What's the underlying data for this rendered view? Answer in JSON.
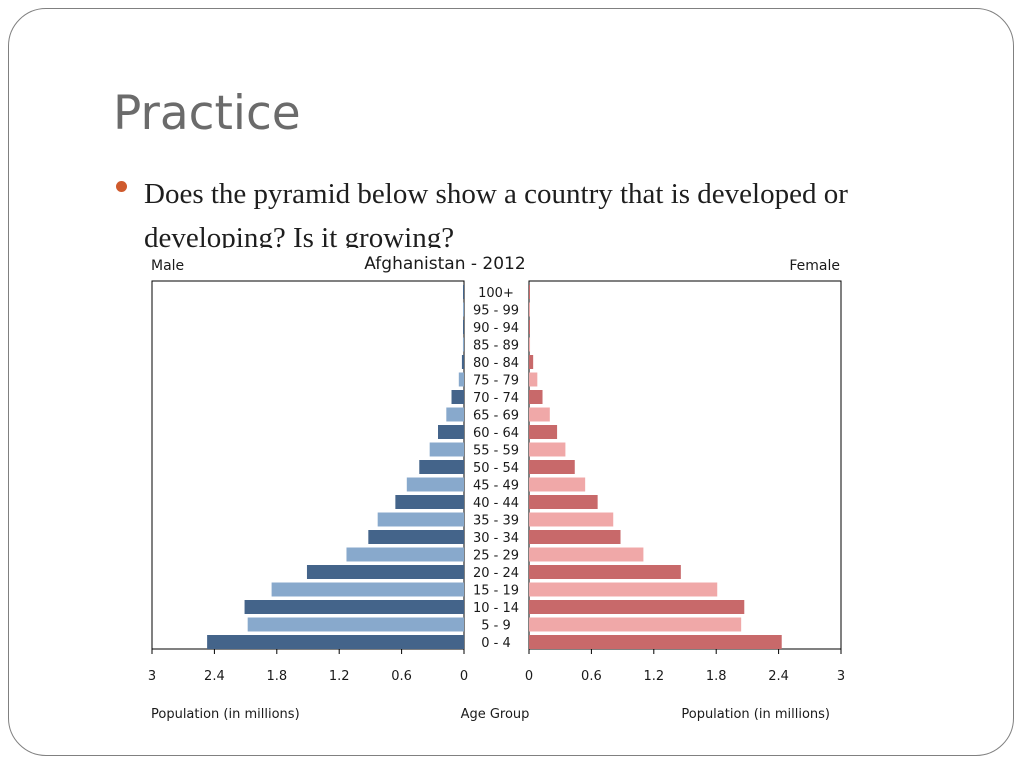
{
  "slide": {
    "title": "Practice",
    "bullet": "Does the pyramid below show a country that is developed or developing?  Is it growing?"
  },
  "chart_data": {
    "type": "bar",
    "orientation": "horizontal-pyramid",
    "title": "Afghanistan - 2012",
    "left_label": "Male",
    "right_label": "Female",
    "xlabel_left": "Population (in millions)",
    "xlabel_center": "Age Group",
    "xlabel_right": "Population (in millions)",
    "xlim": [
      0,
      3
    ],
    "x_ticks_left": [
      "3",
      "2.4",
      "1.8",
      "1.2",
      "0.6",
      "0"
    ],
    "x_ticks_right": [
      "0",
      "0.6",
      "1.2",
      "1.8",
      "2.4",
      "3"
    ],
    "grid": false,
    "colors": {
      "male_dark": "#44648a",
      "male_light": "#88a9cc",
      "female_dark": "#c8696a",
      "female_light": "#f0a8a8"
    },
    "categories": [
      "100+",
      "95 - 99",
      "90 - 94",
      "85 - 89",
      "80 - 84",
      "75 - 79",
      "70 - 74",
      "65 - 69",
      "60 - 64",
      "55 - 59",
      "50 - 54",
      "45 - 49",
      "40 - 44",
      "35 - 39",
      "30 - 34",
      "25 - 29",
      "20 - 24",
      "15 - 19",
      "10 - 14",
      "5 - 9",
      "0 - 4"
    ],
    "series": [
      {
        "name": "Male",
        "values": [
          0.005,
          0.005,
          0.007,
          0.01,
          0.02,
          0.05,
          0.12,
          0.17,
          0.25,
          0.33,
          0.43,
          0.55,
          0.66,
          0.83,
          0.92,
          1.13,
          1.51,
          1.85,
          2.11,
          2.08,
          2.47
        ]
      },
      {
        "name": "Female",
        "values": [
          0.005,
          0.005,
          0.007,
          0.01,
          0.04,
          0.08,
          0.13,
          0.2,
          0.27,
          0.35,
          0.44,
          0.54,
          0.66,
          0.81,
          0.88,
          1.1,
          1.46,
          1.81,
          2.07,
          2.04,
          2.43
        ]
      }
    ]
  }
}
